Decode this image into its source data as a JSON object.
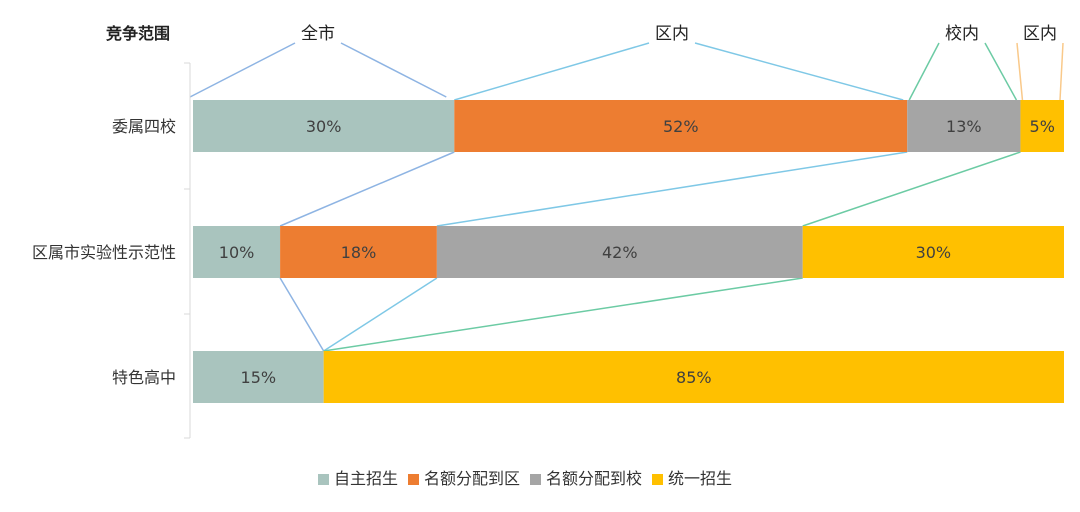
{
  "chart_data": {
    "type": "bar",
    "orientation": "horizontal",
    "stacked": "percent",
    "axis_title": "竞争范围",
    "categories": [
      "委属四校",
      "区属市实验性示范性",
      "特色高中"
    ],
    "series": [
      {
        "name": "自主招生",
        "color": "#A9C4BE",
        "values": [
          30,
          10,
          15
        ]
      },
      {
        "name": "名额分配到区",
        "color": "#ED7D31",
        "values": [
          52,
          18,
          0
        ]
      },
      {
        "name": "名额分配到校",
        "color": "#A5A5A5",
        "values": [
          13,
          42,
          0
        ]
      },
      {
        "name": "统一招生",
        "color": "#FFC000",
        "values": [
          5,
          30,
          85
        ]
      }
    ],
    "value_labels": [
      [
        "30%",
        "52%",
        "13%",
        "5%"
      ],
      [
        "10%",
        "18%",
        "42%",
        "30%"
      ],
      [
        "15%",
        "",
        "",
        "85%"
      ]
    ],
    "scope_labels": [
      {
        "text": "全市",
        "series": 0
      },
      {
        "text": "区内",
        "series": 1
      },
      {
        "text": "校内",
        "series": 2
      },
      {
        "text": "区内",
        "series": 3
      }
    ],
    "connector_colors": [
      "#8EB4E3",
      "#7FC8E6",
      "#6CCBA4",
      "#F9C98A"
    ],
    "legend_position": "bottom",
    "grid": false,
    "xlim": [
      0,
      100
    ]
  }
}
